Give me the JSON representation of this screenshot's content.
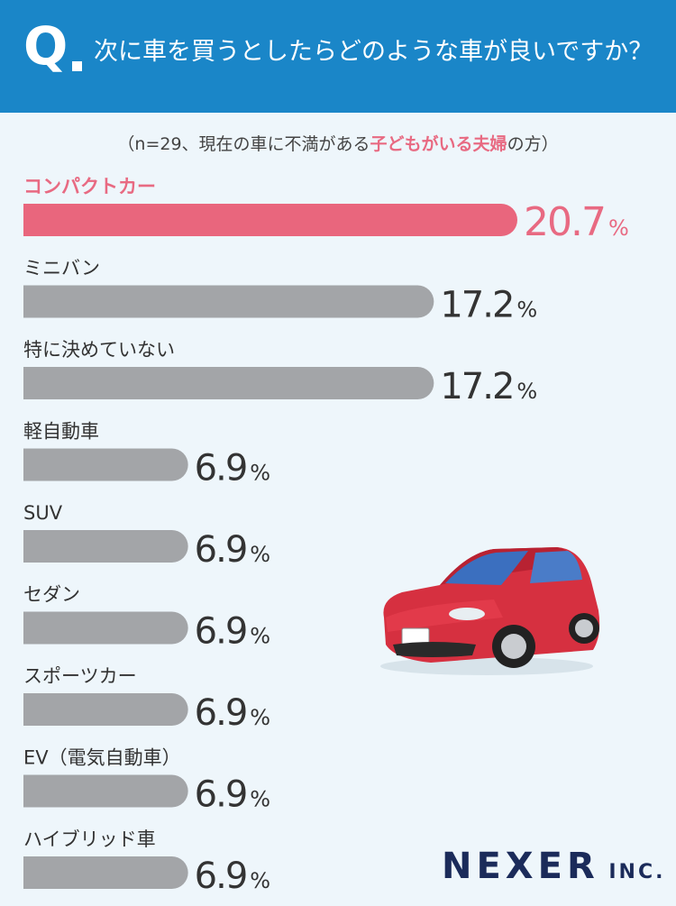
{
  "header": {
    "q_mark": "Q",
    "question": "次に車を買うとしたらどのような車が良いですか？"
  },
  "subtitle": {
    "prefix": "（n=29、現在の車に不満がある",
    "highlight": "子どもがいる夫婦",
    "suffix": "の方）"
  },
  "chart_data": {
    "type": "bar",
    "orientation": "horizontal",
    "categories": [
      "コンパクトカー",
      "ミニバン",
      "特に決めていない",
      "軽自動車",
      "SUV",
      "セダン",
      "スポーツカー",
      "EV（電気自動車）",
      "ハイブリッド車"
    ],
    "values": [
      20.7,
      17.2,
      17.2,
      6.9,
      6.9,
      6.9,
      6.9,
      6.9,
      6.9
    ],
    "value_labels": [
      "20.7",
      "17.2",
      "17.2",
      "6.9",
      "6.9",
      "6.9",
      "6.9",
      "6.9",
      "6.9"
    ],
    "unit": "%",
    "colors": {
      "highlight": "#e9667d",
      "default": "#a3a5a8",
      "highlight_text": "#e86a82",
      "default_text": "#333333"
    },
    "highlight_index": 0,
    "xlim": [
      0,
      20.7
    ],
    "grid": false,
    "legend": "none"
  },
  "logo": {
    "main": "NEXER",
    "suffix": "INC."
  }
}
